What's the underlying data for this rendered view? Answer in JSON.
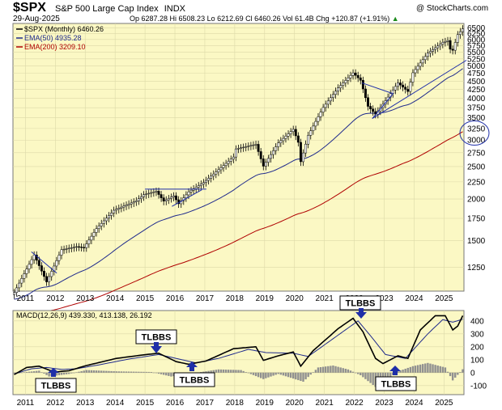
{
  "header": {
    "symbol": "$SPX",
    "name": "S&P 500 Large Cap Index",
    "exchange": "INDX",
    "date": "29-Aug-2025",
    "copyright": "@ StockCharts.com",
    "ohlc": "Op 6287.28  Hi 6508.23  Lo 6212.69  Cl 6460.26  Vol 61.4B  Chg +120.87 (+1.91%)",
    "ohlc_arrow": "▲"
  },
  "legend": [
    {
      "text": "$SPX (Monthly) 6460.26",
      "color": "#000000"
    },
    {
      "text": "EMA(50) 4935.28",
      "color": "#1f2a8c"
    },
    {
      "text": "EMA(200) 3209.10",
      "color": "#b00000"
    }
  ],
  "macd_label": "MACD(12,26,9) 439.330, 413.138, 26.192",
  "price_ticks": [
    "6500",
    "6250",
    "6000",
    "5750",
    "5500",
    "5250",
    "5000",
    "4750",
    "4500",
    "4250",
    "4000",
    "3750",
    "3500",
    "3250",
    "3000",
    "2750",
    "2500",
    "2250",
    "2000",
    "1750",
    "1500",
    "1250"
  ],
  "macd_ticks": [
    "400",
    "300",
    "200",
    "100",
    "0",
    "-100"
  ],
  "years": [
    "2011",
    "2012",
    "2013",
    "2014",
    "2015",
    "2016",
    "2017",
    "2018",
    "2019",
    "2020",
    "2021",
    "2022",
    "2023",
    "2024",
    "2025"
  ],
  "callouts": [
    {
      "text": "TLBBS",
      "dir": "down"
    },
    {
      "text": "TLBBS",
      "dir": "down"
    },
    {
      "text": "TLBBS",
      "dir": "up"
    },
    {
      "text": "TLBBS",
      "dir": "up"
    },
    {
      "text": "TLBBS",
      "dir": "up"
    }
  ],
  "colors": {
    "panel_bg": "#fbf8c4",
    "ema50": "#1f2a8c",
    "ema200": "#b00000",
    "annotation": "#1f2fa8",
    "hist": "#909090"
  },
  "chart_data": [
    {
      "type": "candlestick-monthly",
      "title": "$SPX S&P 500 Large Cap Index INDX",
      "y_scale": "log",
      "ylim": [
        1060,
        6700
      ],
      "x_range": [
        "2010-08",
        "2025-08"
      ],
      "close_anchors": [
        [
          "2010-08",
          1050
        ],
        [
          "2011-04",
          1360
        ],
        [
          "2011-09",
          1130
        ],
        [
          "2011-12",
          1260
        ],
        [
          "2012-03",
          1410
        ],
        [
          "2012-09",
          1440
        ],
        [
          "2012-12",
          1430
        ],
        [
          "2013-05",
          1630
        ],
        [
          "2013-12",
          1850
        ],
        [
          "2014-09",
          1975
        ],
        [
          "2014-12",
          2060
        ],
        [
          "2015-05",
          2110
        ],
        [
          "2015-08",
          1970
        ],
        [
          "2015-12",
          2044
        ],
        [
          "2016-02",
          1935
        ],
        [
          "2016-06",
          2100
        ],
        [
          "2016-12",
          2240
        ],
        [
          "2017-12",
          2670
        ],
        [
          "2018-01",
          2823
        ],
        [
          "2018-09",
          2914
        ],
        [
          "2018-12",
          2507
        ],
        [
          "2019-06",
          2942
        ],
        [
          "2019-12",
          3231
        ],
        [
          "2020-02",
          2954
        ],
        [
          "2020-03",
          2585
        ],
        [
          "2020-06",
          3100
        ],
        [
          "2020-12",
          3756
        ],
        [
          "2021-06",
          4298
        ],
        [
          "2021-12",
          4766
        ],
        [
          "2022-03",
          4530
        ],
        [
          "2022-06",
          3785
        ],
        [
          "2022-09",
          3586
        ],
        [
          "2022-12",
          3840
        ],
        [
          "2023-06",
          4450
        ],
        [
          "2023-10",
          4194
        ],
        [
          "2023-12",
          4770
        ],
        [
          "2024-06",
          5460
        ],
        [
          "2024-12",
          5882
        ],
        [
          "2025-02",
          5955
        ],
        [
          "2025-03",
          5612
        ],
        [
          "2025-04",
          5570
        ],
        [
          "2025-06",
          6205
        ],
        [
          "2025-08",
          6460
        ]
      ],
      "series": [
        {
          "name": "$SPX (Monthly)",
          "last": 6460.26
        },
        {
          "name": "EMA(50)",
          "last": 4935.28
        },
        {
          "name": "EMA(200)",
          "last": 3209.1
        }
      ],
      "annotations": [
        "trendline 2011 downtrend",
        "horizontal resistance 2015-2016",
        "triangle 2022-2023",
        "rising trendline 2022-2025",
        "circle around 3250"
      ]
    },
    {
      "type": "line+histogram",
      "title": "MACD(12,26,9)",
      "ylim": [
        -170,
        480
      ],
      "series": [
        {
          "name": "MACD",
          "last": 439.33,
          "anchors": [
            [
              "2010-08",
              -15
            ],
            [
              "2011-01",
              40
            ],
            [
              "2011-06",
              50
            ],
            [
              "2011-12",
              5
            ],
            [
              "2012-06",
              15
            ],
            [
              "2013-01",
              55
            ],
            [
              "2014-01",
              110
            ],
            [
              "2015-01",
              140
            ],
            [
              "2015-06",
              150
            ],
            [
              "2016-01",
              85
            ],
            [
              "2016-06",
              65
            ],
            [
              "2017-01",
              90
            ],
            [
              "2017-12",
              185
            ],
            [
              "2018-09",
              200
            ],
            [
              "2018-12",
              95
            ],
            [
              "2019-06",
              130
            ],
            [
              "2019-12",
              160
            ],
            [
              "2020-03",
              50
            ],
            [
              "2020-08",
              170
            ],
            [
              "2021-06",
              340
            ],
            [
              "2021-12",
              420
            ],
            [
              "2022-04",
              315
            ],
            [
              "2022-09",
              110
            ],
            [
              "2022-12",
              70
            ],
            [
              "2023-06",
              130
            ],
            [
              "2023-10",
              110
            ],
            [
              "2024-03",
              330
            ],
            [
              "2024-09",
              440
            ],
            [
              "2025-01",
              440
            ],
            [
              "2025-04",
              330
            ],
            [
              "2025-06",
              360
            ],
            [
              "2025-08",
              440
            ]
          ]
        },
        {
          "name": "Signal",
          "last": 413.138,
          "anchors": [
            [
              "2010-08",
              -10
            ],
            [
              "2011-03",
              30
            ],
            [
              "2011-09",
              40
            ],
            [
              "2012-03",
              25
            ],
            [
              "2012-09",
              30
            ],
            [
              "2013-06",
              60
            ],
            [
              "2014-06",
              105
            ],
            [
              "2015-06",
              140
            ],
            [
              "2016-01",
              110
            ],
            [
              "2016-09",
              75
            ],
            [
              "2017-06",
              110
            ],
            [
              "2018-06",
              180
            ],
            [
              "2019-01",
              155
            ],
            [
              "2019-12",
              150
            ],
            [
              "2020-06",
              125
            ],
            [
              "2021-06",
              290
            ],
            [
              "2022-02",
              400
            ],
            [
              "2022-07",
              285
            ],
            [
              "2023-01",
              140
            ],
            [
              "2023-09",
              110
            ],
            [
              "2024-06",
              300
            ],
            [
              "2024-12",
              410
            ],
            [
              "2025-04",
              390
            ],
            [
              "2025-08",
              413
            ]
          ]
        },
        {
          "name": "Histogram",
          "last": 26.192,
          "anchors": [
            [
              "2010-08",
              -5
            ],
            [
              "2011-06",
              15
            ],
            [
              "2011-10",
              -30
            ],
            [
              "2012-06",
              -10
            ],
            [
              "2013-01",
              20
            ],
            [
              "2014-01",
              10
            ],
            [
              "2015-03",
              5
            ],
            [
              "2015-11",
              -30
            ],
            [
              "2016-06",
              -10
            ],
            [
              "2017-06",
              25
            ],
            [
              "2018-03",
              20
            ],
            [
              "2018-12",
              -50
            ],
            [
              "2019-06",
              -10
            ],
            [
              "2020-04",
              -70
            ],
            [
              "2020-10",
              40
            ],
            [
              "2021-04",
              55
            ],
            [
              "2021-10",
              25
            ],
            [
              "2022-03",
              -20
            ],
            [
              "2022-09",
              -110
            ],
            [
              "2022-12",
              -75
            ],
            [
              "2023-06",
              10
            ],
            [
              "2023-12",
              50
            ],
            [
              "2024-06",
              75
            ],
            [
              "2025-01",
              40
            ],
            [
              "2025-04",
              -60
            ],
            [
              "2025-08",
              26
            ]
          ]
        }
      ]
    }
  ]
}
